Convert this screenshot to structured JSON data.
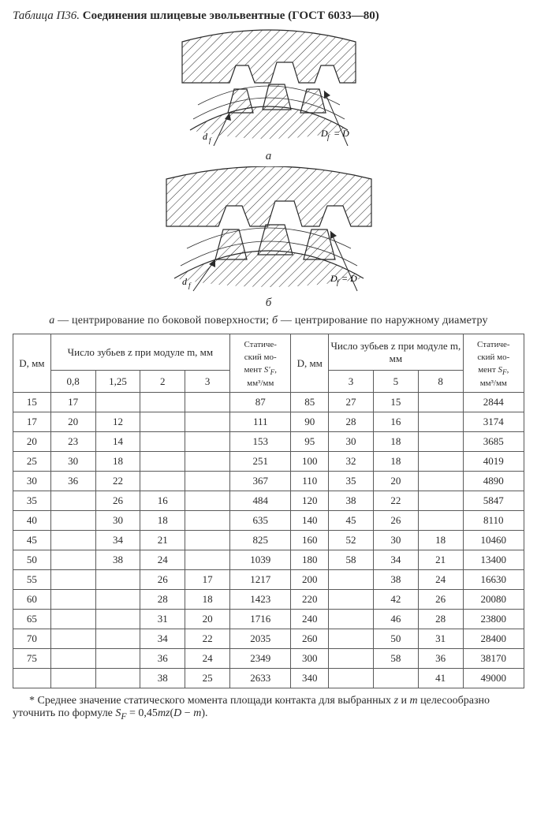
{
  "title_prefix": "Таблица П36.",
  "title_main": "Соединения шлицевые эвольвентные (ГОСТ 6033—80)",
  "fig_label_a": "а",
  "fig_label_b": "б",
  "diagram_text": {
    "df": "d_f",
    "Df_eq_D": "D_f = D"
  },
  "caption_a_letter": "а",
  "caption_a_text": " — центрирование по боковой поверхности; ",
  "caption_b_letter": "б",
  "caption_b_text": " — центрирование по наружному диаметру",
  "headers": {
    "D": "D, мм",
    "z_at_m": "Число зубьев z при модуле m, мм",
    "S": "Статиче-ский мо-мент S'F, мм³/мм",
    "S2": "Статиче-ский мо-мент SF, мм³/мм",
    "m_left": [
      "0,8",
      "1,25",
      "2",
      "3"
    ],
    "m_right": [
      "3",
      "5",
      "8"
    ]
  },
  "rows": [
    {
      "L": {
        "D": "15",
        "m": [
          "17",
          "",
          "",
          ""
        ],
        "S": "87"
      },
      "R": {
        "D": "85",
        "m": [
          "27",
          "15",
          ""
        ],
        "S": "2844"
      }
    },
    {
      "L": {
        "D": "17",
        "m": [
          "20",
          "12",
          "",
          ""
        ],
        "S": "111"
      },
      "R": {
        "D": "90",
        "m": [
          "28",
          "16",
          ""
        ],
        "S": "3174"
      }
    },
    {
      "L": {
        "D": "20",
        "m": [
          "23",
          "14",
          "",
          ""
        ],
        "S": "153"
      },
      "R": {
        "D": "95",
        "m": [
          "30",
          "18",
          ""
        ],
        "S": "3685"
      }
    },
    {
      "L": {
        "D": "25",
        "m": [
          "30",
          "18",
          "",
          ""
        ],
        "S": "251"
      },
      "R": {
        "D": "100",
        "m": [
          "32",
          "18",
          ""
        ],
        "S": "4019"
      }
    },
    {
      "L": {
        "D": "30",
        "m": [
          "36",
          "22",
          "",
          ""
        ],
        "S": "367"
      },
      "R": {
        "D": "110",
        "m": [
          "35",
          "20",
          ""
        ],
        "S": "4890"
      }
    },
    {
      "L": {
        "D": "35",
        "m": [
          "",
          "26",
          "16",
          ""
        ],
        "S": "484"
      },
      "R": {
        "D": "120",
        "m": [
          "38",
          "22",
          ""
        ],
        "S": "5847"
      }
    },
    {
      "L": {
        "D": "40",
        "m": [
          "",
          "30",
          "18",
          ""
        ],
        "S": "635"
      },
      "R": {
        "D": "140",
        "m": [
          "45",
          "26",
          ""
        ],
        "S": "8110"
      }
    },
    {
      "L": {
        "D": "45",
        "m": [
          "",
          "34",
          "21",
          ""
        ],
        "S": "825"
      },
      "R": {
        "D": "160",
        "m": [
          "52",
          "30",
          "18"
        ],
        "S": "10460"
      }
    },
    {
      "L": {
        "D": "50",
        "m": [
          "",
          "38",
          "24",
          ""
        ],
        "S": "1039"
      },
      "R": {
        "D": "180",
        "m": [
          "58",
          "34",
          "21"
        ],
        "S": "13400"
      }
    },
    {
      "L": {
        "D": "55",
        "m": [
          "",
          "",
          "26",
          "17"
        ],
        "S": "1217"
      },
      "R": {
        "D": "200",
        "m": [
          "",
          "38",
          "24"
        ],
        "S": "16630"
      }
    },
    {
      "L": {
        "D": "60",
        "m": [
          "",
          "",
          "28",
          "18"
        ],
        "S": "1423"
      },
      "R": {
        "D": "220",
        "m": [
          "",
          "42",
          "26"
        ],
        "S": "20080"
      }
    },
    {
      "L": {
        "D": "65",
        "m": [
          "",
          "",
          "31",
          "20"
        ],
        "S": "1716"
      },
      "R": {
        "D": "240",
        "m": [
          "",
          "46",
          "28"
        ],
        "S": "23800"
      }
    },
    {
      "L": {
        "D": "70",
        "m": [
          "",
          "",
          "34",
          "22"
        ],
        "S": "2035"
      },
      "R": {
        "D": "260",
        "m": [
          "",
          "50",
          "31"
        ],
        "S": "28400"
      }
    },
    {
      "L": {
        "D": "75",
        "m": [
          "",
          "",
          "36",
          "24"
        ],
        "S": "2349"
      },
      "R": {
        "D": "300",
        "m": [
          "",
          "58",
          "36"
        ],
        "S": "38170"
      }
    },
    {
      "L": {
        "D": "",
        "m": [
          "",
          "",
          "38",
          "25"
        ],
        "S": "2633"
      },
      "R": {
        "D": "340",
        "m": [
          "",
          "",
          "41"
        ],
        "S": "49000"
      }
    }
  ],
  "footnote": "* Среднее значение статического момента площади контакта для выбранных z и m целесообразно уточнить по формуле S F = 0,45mz(D − m)."
}
